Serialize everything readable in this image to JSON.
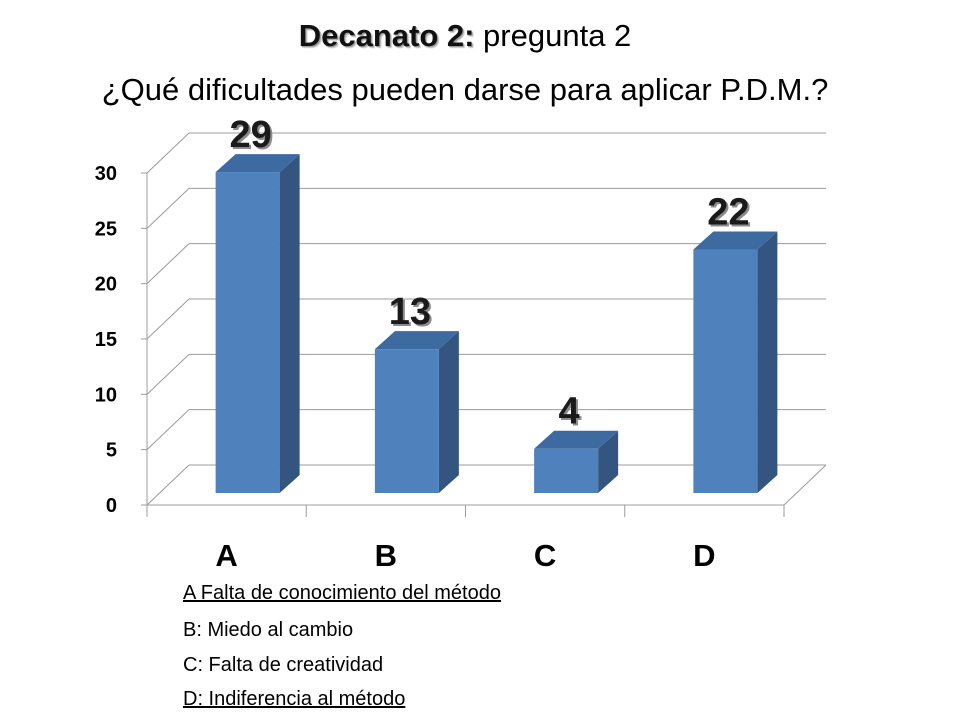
{
  "title": {
    "prefix": "Decanato 2:",
    "suffix": " pregunta 2",
    "question": "¿Qué dificultades pueden darse para aplicar P.D.M.?"
  },
  "chart_data": {
    "type": "bar",
    "categories": [
      "A",
      "B",
      "C",
      "D"
    ],
    "values": [
      29,
      13,
      4,
      22
    ],
    "data_labels": [
      "29",
      "13",
      "4",
      "22"
    ],
    "xlabel": "",
    "ylabel": "",
    "ylim": [
      0,
      30
    ],
    "yticks": [
      "0",
      "5",
      "10",
      "15",
      "20",
      "25",
      "30"
    ],
    "grid": true,
    "bar_style": "3d",
    "colors": {
      "front": "#4f81bd",
      "side": "#34557f",
      "top": "#3d6aa0"
    },
    "legend_placement": "bottom"
  },
  "legend": [
    {
      "text": "A Falta de conocimiento del método",
      "underline": true
    },
    {
      "text": "B: Miedo al cambio",
      "underline": false
    },
    {
      "text": "C: Falta de creatividad",
      "underline": false
    },
    {
      "text": "D: Indiferencia  al método",
      "underline": true
    }
  ]
}
